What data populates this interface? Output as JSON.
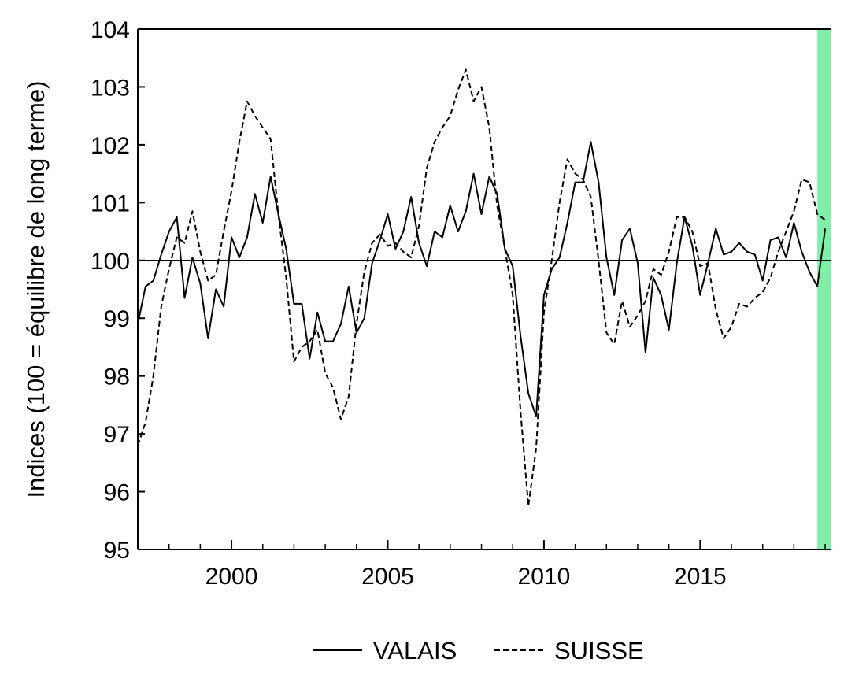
{
  "chart_data": {
    "type": "line",
    "title": "",
    "xlabel": "",
    "ylabel": "Indices (100 = équilibre de long terme)",
    "xlim": [
      1997.0,
      2019.2
    ],
    "ylim": [
      95,
      104
    ],
    "yticks": [
      95,
      96,
      97,
      98,
      99,
      100,
      101,
      102,
      103,
      104
    ],
    "xticks": [
      2000,
      2005,
      2010,
      2015
    ],
    "reference_line": 100,
    "grid": false,
    "legend_position": "bottom-center",
    "highlight_band": {
      "x_from": 2018.75,
      "x_to": 2019.25,
      "color": "#80f0a8"
    },
    "series": [
      {
        "name": "VALAIS",
        "style": "solid",
        "color": "#000000",
        "points": [
          [
            1997.0,
            98.9
          ],
          [
            1997.25,
            99.55
          ],
          [
            1997.5,
            99.65
          ],
          [
            1997.75,
            100.1
          ],
          [
            1998.0,
            100.5
          ],
          [
            1998.25,
            100.75
          ],
          [
            1998.5,
            99.35
          ],
          [
            1998.75,
            100.05
          ],
          [
            1999.0,
            99.6
          ],
          [
            1999.25,
            98.65
          ],
          [
            1999.5,
            99.5
          ],
          [
            1999.75,
            99.2
          ],
          [
            2000.0,
            100.4
          ],
          [
            2000.25,
            100.05
          ],
          [
            2000.5,
            100.4
          ],
          [
            2000.75,
            101.15
          ],
          [
            2001.0,
            100.65
          ],
          [
            2001.25,
            101.45
          ],
          [
            2001.5,
            100.8
          ],
          [
            2001.75,
            100.2
          ],
          [
            2002.0,
            99.25
          ],
          [
            2002.25,
            99.25
          ],
          [
            2002.5,
            98.3
          ],
          [
            2002.75,
            99.1
          ],
          [
            2003.0,
            98.6
          ],
          [
            2003.25,
            98.6
          ],
          [
            2003.5,
            98.9
          ],
          [
            2003.75,
            99.55
          ],
          [
            2004.0,
            98.75
          ],
          [
            2004.25,
            99.0
          ],
          [
            2004.5,
            99.95
          ],
          [
            2004.75,
            100.35
          ],
          [
            2005.0,
            100.8
          ],
          [
            2005.25,
            100.2
          ],
          [
            2005.5,
            100.5
          ],
          [
            2005.75,
            101.1
          ],
          [
            2006.0,
            100.3
          ],
          [
            2006.25,
            99.9
          ],
          [
            2006.5,
            100.5
          ],
          [
            2006.75,
            100.4
          ],
          [
            2007.0,
            100.95
          ],
          [
            2007.25,
            100.5
          ],
          [
            2007.5,
            100.85
          ],
          [
            2007.75,
            101.5
          ],
          [
            2008.0,
            100.8
          ],
          [
            2008.25,
            101.45
          ],
          [
            2008.5,
            101.15
          ],
          [
            2008.75,
            100.2
          ],
          [
            2009.0,
            99.9
          ],
          [
            2009.25,
            98.7
          ],
          [
            2009.5,
            97.7
          ],
          [
            2009.75,
            97.3
          ],
          [
            2010.0,
            99.4
          ],
          [
            2010.25,
            99.85
          ],
          [
            2010.5,
            100.05
          ],
          [
            2010.75,
            100.65
          ],
          [
            2011.0,
            101.35
          ],
          [
            2011.25,
            101.35
          ],
          [
            2011.5,
            102.05
          ],
          [
            2011.75,
            101.35
          ],
          [
            2012.0,
            100.05
          ],
          [
            2012.25,
            99.4
          ],
          [
            2012.5,
            100.35
          ],
          [
            2012.75,
            100.55
          ],
          [
            2013.0,
            99.95
          ],
          [
            2013.25,
            98.4
          ],
          [
            2013.5,
            99.7
          ],
          [
            2013.75,
            99.4
          ],
          [
            2014.0,
            98.8
          ],
          [
            2014.25,
            99.95
          ],
          [
            2014.5,
            100.75
          ],
          [
            2014.75,
            100.25
          ],
          [
            2015.0,
            99.4
          ],
          [
            2015.25,
            99.95
          ],
          [
            2015.5,
            100.55
          ],
          [
            2015.75,
            100.1
          ],
          [
            2016.0,
            100.15
          ],
          [
            2016.25,
            100.3
          ],
          [
            2016.5,
            100.15
          ],
          [
            2016.75,
            100.1
          ],
          [
            2017.0,
            99.65
          ],
          [
            2017.25,
            100.35
          ],
          [
            2017.5,
            100.4
          ],
          [
            2017.75,
            100.05
          ],
          [
            2018.0,
            100.65
          ],
          [
            2018.25,
            100.15
          ],
          [
            2018.5,
            99.8
          ],
          [
            2018.75,
            99.55
          ],
          [
            2019.0,
            100.55
          ]
        ]
      },
      {
        "name": "SUISSE",
        "style": "dashed",
        "color": "#000000",
        "points": [
          [
            1997.0,
            96.8
          ],
          [
            1997.25,
            97.2
          ],
          [
            1997.5,
            98.0
          ],
          [
            1997.75,
            99.2
          ],
          [
            1998.0,
            99.85
          ],
          [
            1998.25,
            100.4
          ],
          [
            1998.5,
            100.3
          ],
          [
            1998.75,
            100.85
          ],
          [
            1999.0,
            100.15
          ],
          [
            1999.25,
            99.65
          ],
          [
            1999.5,
            99.75
          ],
          [
            1999.75,
            100.5
          ],
          [
            2000.0,
            101.2
          ],
          [
            2000.25,
            102.05
          ],
          [
            2000.5,
            102.75
          ],
          [
            2000.75,
            102.5
          ],
          [
            2001.0,
            102.3
          ],
          [
            2001.25,
            102.1
          ],
          [
            2001.5,
            100.8
          ],
          [
            2001.75,
            99.7
          ],
          [
            2002.0,
            98.25
          ],
          [
            2002.25,
            98.5
          ],
          [
            2002.5,
            98.6
          ],
          [
            2002.75,
            98.8
          ],
          [
            2003.0,
            98.05
          ],
          [
            2003.25,
            97.8
          ],
          [
            2003.5,
            97.25
          ],
          [
            2003.75,
            97.65
          ],
          [
            2004.0,
            98.9
          ],
          [
            2004.25,
            99.8
          ],
          [
            2004.5,
            100.3
          ],
          [
            2004.75,
            100.45
          ],
          [
            2005.0,
            100.25
          ],
          [
            2005.25,
            100.3
          ],
          [
            2005.5,
            100.15
          ],
          [
            2005.75,
            100.05
          ],
          [
            2006.0,
            100.6
          ],
          [
            2006.25,
            101.6
          ],
          [
            2006.5,
            102.05
          ],
          [
            2006.75,
            102.3
          ],
          [
            2007.0,
            102.5
          ],
          [
            2007.25,
            102.95
          ],
          [
            2007.5,
            103.3
          ],
          [
            2007.75,
            102.75
          ],
          [
            2008.0,
            103.0
          ],
          [
            2008.25,
            102.3
          ],
          [
            2008.5,
            100.95
          ],
          [
            2008.75,
            100.2
          ],
          [
            2009.0,
            99.4
          ],
          [
            2009.25,
            97.4
          ],
          [
            2009.5,
            95.75
          ],
          [
            2009.75,
            96.75
          ],
          [
            2010.0,
            99.1
          ],
          [
            2010.25,
            100.0
          ],
          [
            2010.5,
            101.0
          ],
          [
            2010.75,
            101.75
          ],
          [
            2011.0,
            101.5
          ],
          [
            2011.25,
            101.4
          ],
          [
            2011.5,
            101.1
          ],
          [
            2011.75,
            100.0
          ],
          [
            2012.0,
            98.75
          ],
          [
            2012.25,
            98.55
          ],
          [
            2012.5,
            99.3
          ],
          [
            2012.75,
            98.85
          ],
          [
            2013.0,
            99.05
          ],
          [
            2013.25,
            99.3
          ],
          [
            2013.5,
            99.85
          ],
          [
            2013.75,
            99.75
          ],
          [
            2014.0,
            100.15
          ],
          [
            2014.25,
            100.75
          ],
          [
            2014.5,
            100.75
          ],
          [
            2014.75,
            100.5
          ],
          [
            2015.0,
            99.9
          ],
          [
            2015.25,
            99.95
          ],
          [
            2015.5,
            99.15
          ],
          [
            2015.75,
            98.65
          ],
          [
            2016.0,
            98.85
          ],
          [
            2016.25,
            99.25
          ],
          [
            2016.5,
            99.2
          ],
          [
            2016.75,
            99.35
          ],
          [
            2017.0,
            99.45
          ],
          [
            2017.25,
            99.7
          ],
          [
            2017.5,
            100.15
          ],
          [
            2017.75,
            100.5
          ],
          [
            2018.0,
            100.85
          ],
          [
            2018.25,
            101.4
          ],
          [
            2018.5,
            101.35
          ],
          [
            2018.75,
            100.8
          ],
          [
            2019.0,
            100.7
          ]
        ]
      }
    ]
  }
}
